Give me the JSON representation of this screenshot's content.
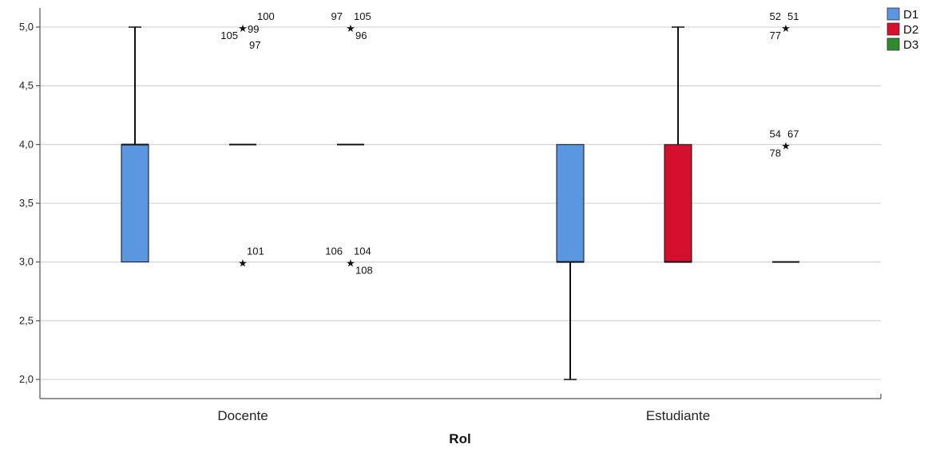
{
  "chart_data": {
    "type": "boxplot",
    "xlabel": "Rol",
    "ylabel": "",
    "ylim": [
      1.85,
      5.15
    ],
    "yticks": [
      "2,0",
      "2,5",
      "3,0",
      "3,5",
      "4,0",
      "4,5",
      "5,0"
    ],
    "ytick_values": [
      2.0,
      2.5,
      3.0,
      3.5,
      4.0,
      4.5,
      5.0
    ],
    "grid": "horizontal",
    "legend_position": "top-right",
    "categories": [
      "Docente",
      "Estudiante"
    ],
    "series": [
      {
        "name": "D1",
        "color": "#5b97e0",
        "boxes": [
          {
            "category": "Docente",
            "min": 3.0,
            "q1": 3.0,
            "median": 4.0,
            "q3": 4.0,
            "max": 5.0
          },
          {
            "category": "Estudiante",
            "min": 2.0,
            "q1": 3.0,
            "median": 3.0,
            "q3": 4.0,
            "max": 4.0
          }
        ]
      },
      {
        "name": "D2",
        "color": "#d5102e",
        "boxes": [
          {
            "category": "Docente",
            "min": 4.0,
            "q1": 4.0,
            "median": 4.0,
            "q3": 4.0,
            "max": 4.0
          },
          {
            "category": "Estudiante",
            "min": 3.0,
            "q1": 3.0,
            "median": 3.0,
            "q3": 4.0,
            "max": 5.0
          }
        ]
      },
      {
        "name": "D3",
        "color": "#2e8b2e",
        "boxes": [
          {
            "category": "Docente",
            "min": 4.0,
            "q1": 4.0,
            "median": 4.0,
            "q3": 4.0,
            "max": 4.0
          },
          {
            "category": "Estudiante",
            "min": 3.0,
            "q1": 3.0,
            "median": 3.0,
            "q3": 3.0,
            "max": 3.0
          }
        ]
      }
    ],
    "outliers": [
      {
        "category": "Docente",
        "series": "D2",
        "value": 5.0,
        "symbol": "★",
        "labels": [
          "100",
          "105",
          "99",
          "97"
        ]
      },
      {
        "category": "Docente",
        "series": "D2",
        "value": 3.0,
        "symbol": "★",
        "labels": [
          "101"
        ]
      },
      {
        "category": "Docente",
        "series": "D3",
        "value": 5.0,
        "symbol": "★",
        "labels": [
          "97",
          "105",
          "96"
        ]
      },
      {
        "category": "Docente",
        "series": "D3",
        "value": 3.0,
        "symbol": "★",
        "labels": [
          "106",
          "104",
          "108"
        ]
      },
      {
        "category": "Estudiante",
        "series": "D3",
        "value": 5.0,
        "symbol": "★",
        "labels": [
          "52",
          "51",
          "77"
        ]
      },
      {
        "category": "Estudiante",
        "series": "D3",
        "value": 4.0,
        "symbol": "★",
        "labels": [
          "54",
          "67",
          "78"
        ]
      }
    ]
  }
}
